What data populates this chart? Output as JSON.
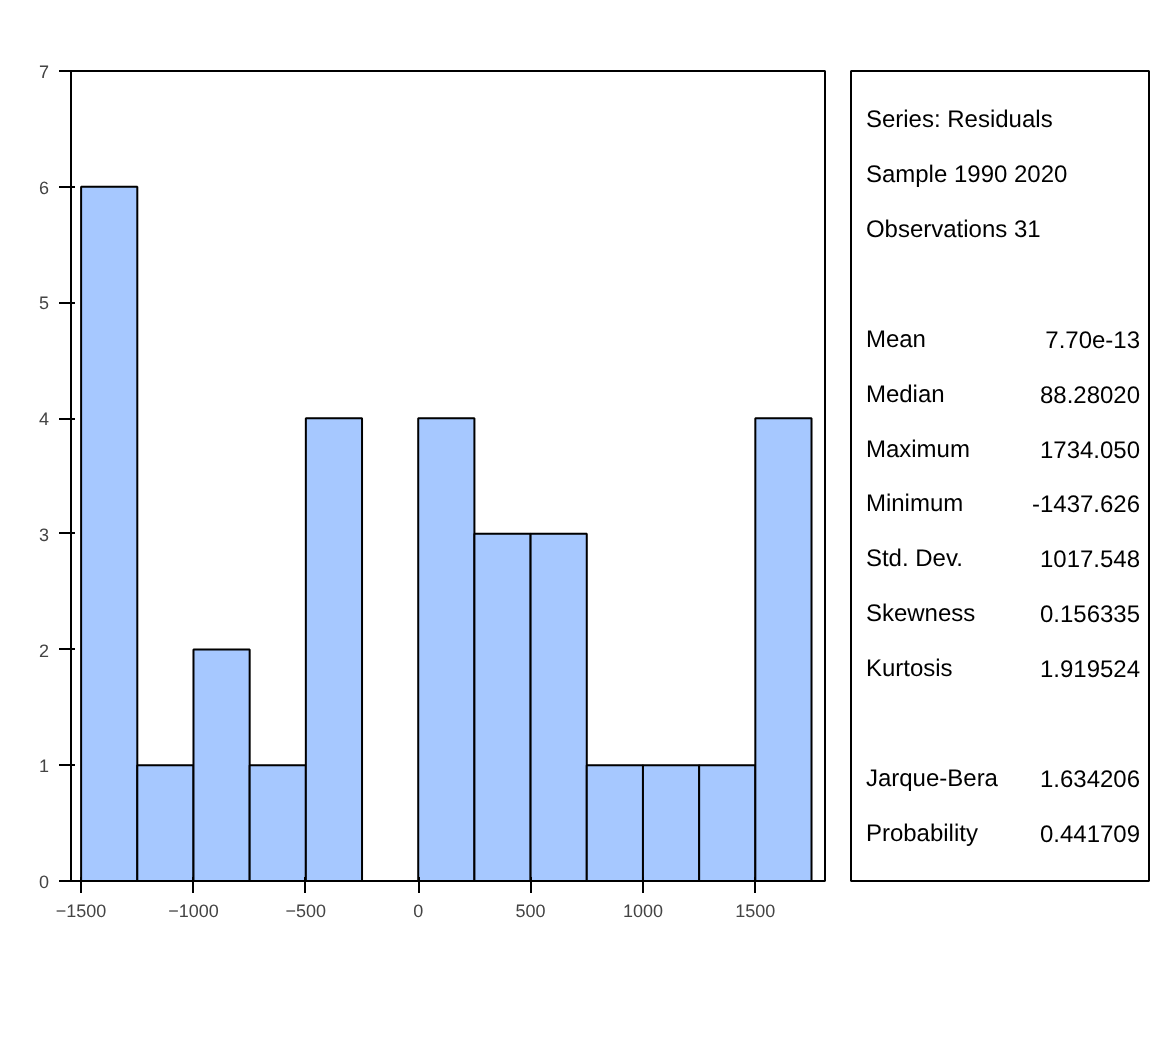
{
  "chart_data": [
    {
      "type": "histogram",
      "bins": [
        -1500,
        -1250,
        -1000,
        -750,
        -500,
        -250,
        0,
        250,
        500,
        750,
        1000,
        1250,
        1500,
        1750
      ],
      "values": [
        6,
        1,
        2,
        1,
        4,
        0,
        4,
        3,
        3,
        1,
        1,
        1,
        4
      ],
      "color": "#a6c8ff",
      "xlim": [
        -1545,
        1810
      ],
      "xticks": [
        -1500,
        -1000,
        -500,
        0,
        500,
        1000,
        1500
      ],
      "ylim": [
        0,
        7
      ],
      "yticks": [
        0,
        1,
        2,
        3,
        4,
        5,
        6,
        7
      ],
      "grid": false
    },
    {
      "type": "other",
      "annotations": [
        "Series: Residuals",
        "Sample 1990 2020",
        "Observations 31"
      ],
      "categories": [
        "Mean",
        "Median",
        "Maximum",
        "Minimum",
        "Std. Dev.",
        "Skewness",
        "Kurtosis",
        null,
        "Jarque-Bera",
        "Probability"
      ],
      "value_labels": [
        "7.70e-13",
        "88.28020",
        "1734.050",
        "-1437.626",
        "1017.548",
        "0.156335",
        "1.919524",
        null,
        "1.634206",
        "0.441709"
      ]
    }
  ]
}
